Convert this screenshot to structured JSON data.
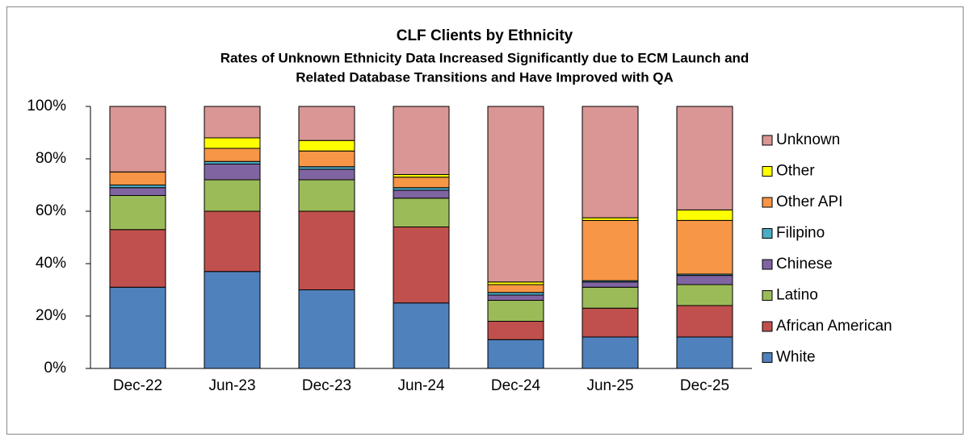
{
  "chart_data": {
    "type": "stacked_bar",
    "title": "CLF Clients by Ethnicity",
    "subtitle": [
      "Rates of Unknown Ethnicity Data Increased Significantly due to ECM Launch and",
      "Related Database Transitions and Have Improved with QA"
    ],
    "categories": [
      "Dec-22",
      "Jun-23",
      "Dec-23",
      "Jun-24",
      "Dec-24",
      "Jun-25",
      "Dec-25"
    ],
    "series": [
      {
        "name": "White",
        "color": "#4f81bd",
        "values": [
          31,
          37,
          30,
          25,
          11,
          12,
          12
        ]
      },
      {
        "name": "African American",
        "color": "#c0504d",
        "values": [
          22,
          23,
          30,
          29,
          7,
          11,
          12
        ]
      },
      {
        "name": "Latino",
        "color": "#9bbb59",
        "values": [
          13,
          12,
          12,
          11,
          8,
          8,
          8
        ]
      },
      {
        "name": "Chinese",
        "color": "#8064a2",
        "values": [
          3,
          6,
          4,
          3,
          2,
          2,
          3.5
        ]
      },
      {
        "name": "Filipino",
        "color": "#4bacc6",
        "values": [
          1,
          1,
          1,
          1,
          1,
          0.5,
          0.5
        ]
      },
      {
        "name": "Other API",
        "color": "#f79646",
        "values": [
          5,
          5,
          6,
          4,
          3,
          23,
          20.5
        ]
      },
      {
        "name": "Other",
        "color": "#ffff00",
        "values": [
          0,
          4,
          4,
          1,
          1,
          1,
          4
        ]
      },
      {
        "name": "Unknown",
        "color": "#d99694",
        "values": [
          25,
          12,
          13,
          26,
          67,
          42.5,
          39.5
        ]
      }
    ],
    "ylim": [
      0,
      100
    ],
    "yticks": [
      {
        "value": 0,
        "label": "0%"
      },
      {
        "value": 20,
        "label": "20%"
      },
      {
        "value": 40,
        "label": "40%"
      },
      {
        "value": 60,
        "label": "60%"
      },
      {
        "value": 80,
        "label": "80%"
      },
      {
        "value": 100,
        "label": "100%"
      }
    ],
    "legend": "right"
  }
}
